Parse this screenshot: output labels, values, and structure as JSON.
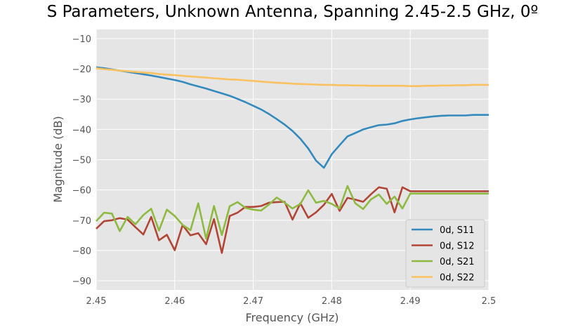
{
  "chart_data": {
    "type": "line",
    "title": "S Parameters, Unknown Antenna, Spanning 2.45-2.5 GHz, 0º",
    "xlabel": "Frequency (GHz)",
    "ylabel": "Magnitude (dB)",
    "xlim": [
      2.45,
      2.5
    ],
    "ylim": [
      -93,
      -7
    ],
    "xticks": [
      2.45,
      2.46,
      2.47,
      2.48,
      2.49,
      2.5
    ],
    "xtick_labels": [
      "2.45",
      "2.46",
      "2.47",
      "2.48",
      "2.49",
      "2.5"
    ],
    "yticks": [
      -10,
      -20,
      -30,
      -40,
      -50,
      -60,
      -70,
      -80,
      -90
    ],
    "ytick_labels": [
      "−10",
      "−20",
      "−30",
      "−40",
      "−50",
      "−60",
      "−70",
      "−80",
      "−90"
    ],
    "grid": true,
    "legend_position": "lower-right",
    "x": [
      2.45,
      2.451,
      2.452,
      2.453,
      2.454,
      2.455,
      2.456,
      2.457,
      2.458,
      2.459,
      2.46,
      2.461,
      2.462,
      2.463,
      2.464,
      2.465,
      2.466,
      2.467,
      2.468,
      2.469,
      2.47,
      2.471,
      2.472,
      2.473,
      2.474,
      2.475,
      2.476,
      2.477,
      2.478,
      2.479,
      2.48,
      2.481,
      2.482,
      2.483,
      2.484,
      2.485,
      2.486,
      2.487,
      2.488,
      2.489,
      2.49,
      2.491,
      2.492,
      2.493,
      2.494,
      2.495,
      2.496,
      2.497,
      2.498,
      2.499,
      2.5
    ],
    "series": [
      {
        "name": "0d, S11",
        "color": "#348abd",
        "values": [
          -19.5,
          -19.8,
          -20.2,
          -20.6,
          -21.0,
          -21.4,
          -21.8,
          -22.2,
          -22.7,
          -23.2,
          -23.7,
          -24.3,
          -25.1,
          -25.8,
          -26.5,
          -27.3,
          -28.1,
          -28.9,
          -29.9,
          -31.0,
          -32.2,
          -33.4,
          -34.9,
          -36.6,
          -38.4,
          -40.5,
          -43.1,
          -46.3,
          -50.3,
          -52.7,
          -48.2,
          -45.2,
          -42.3,
          -41.2,
          -40.0,
          -39.3,
          -38.6,
          -38.4,
          -38.0,
          -37.2,
          -36.7,
          -36.3,
          -36.0,
          -35.7,
          -35.5,
          -35.4,
          -35.4,
          -35.4,
          -35.2,
          -35.2,
          -35.2
        ]
      },
      {
        "name": "0d, S12",
        "color": "#b24636",
        "values": [
          -72.8,
          -70.3,
          -70.0,
          -69.3,
          -69.8,
          -72.3,
          -74.7,
          -68.9,
          -76.6,
          -74.8,
          -79.9,
          -71.6,
          -75.0,
          -74.3,
          -77.9,
          -69.6,
          -80.8,
          -68.6,
          -67.5,
          -65.6,
          -65.6,
          -65.3,
          -64.2,
          -64.0,
          -63.9,
          -69.8,
          -64.4,
          -69.2,
          -67.4,
          -64.9,
          -61.3,
          -66.9,
          -62.6,
          -63.2,
          -63.9,
          -61.4,
          -59.1,
          -59.6,
          -67.4,
          -59.1,
          -60.4,
          -60.4,
          -60.4,
          -60.4,
          -60.4,
          -60.4,
          -60.4,
          -60.4,
          -60.4,
          -60.4,
          -60.4
        ]
      },
      {
        "name": "0d, S21",
        "color": "#8eba42",
        "values": [
          -70.3,
          -67.5,
          -67.8,
          -73.6,
          -68.9,
          -71.3,
          -68.3,
          -66.2,
          -73.4,
          -66.5,
          -68.6,
          -71.5,
          -73.3,
          -64.4,
          -76.1,
          -65.3,
          -74.9,
          -65.4,
          -64.0,
          -65.9,
          -66.5,
          -66.8,
          -64.8,
          -62.5,
          -64.2,
          -66.1,
          -64.6,
          -60.1,
          -64.2,
          -63.6,
          -64.6,
          -66.1,
          -58.7,
          -64.4,
          -66.3,
          -63.1,
          -61.5,
          -64.6,
          -62.2,
          -66.1,
          -61.2,
          -61.2,
          -61.2,
          -61.2,
          -61.2,
          -61.2,
          -61.2,
          -61.2,
          -61.2,
          -61.2,
          -61.2
        ]
      },
      {
        "name": "0d, S22",
        "color": "#fbc15e",
        "values": [
          -19.8,
          -20.1,
          -20.3,
          -20.6,
          -20.8,
          -21.0,
          -21.2,
          -21.4,
          -21.7,
          -21.9,
          -22.1,
          -22.3,
          -22.5,
          -22.7,
          -22.9,
          -23.1,
          -23.3,
          -23.5,
          -23.6,
          -23.8,
          -24.0,
          -24.2,
          -24.4,
          -24.6,
          -24.7,
          -24.9,
          -25.0,
          -25.1,
          -25.2,
          -25.3,
          -25.3,
          -25.4,
          -25.4,
          -25.5,
          -25.5,
          -25.6,
          -25.6,
          -25.6,
          -25.6,
          -25.6,
          -25.7,
          -25.7,
          -25.6,
          -25.6,
          -25.5,
          -25.5,
          -25.4,
          -25.4,
          -25.3,
          -25.3,
          -25.3
        ]
      }
    ]
  }
}
